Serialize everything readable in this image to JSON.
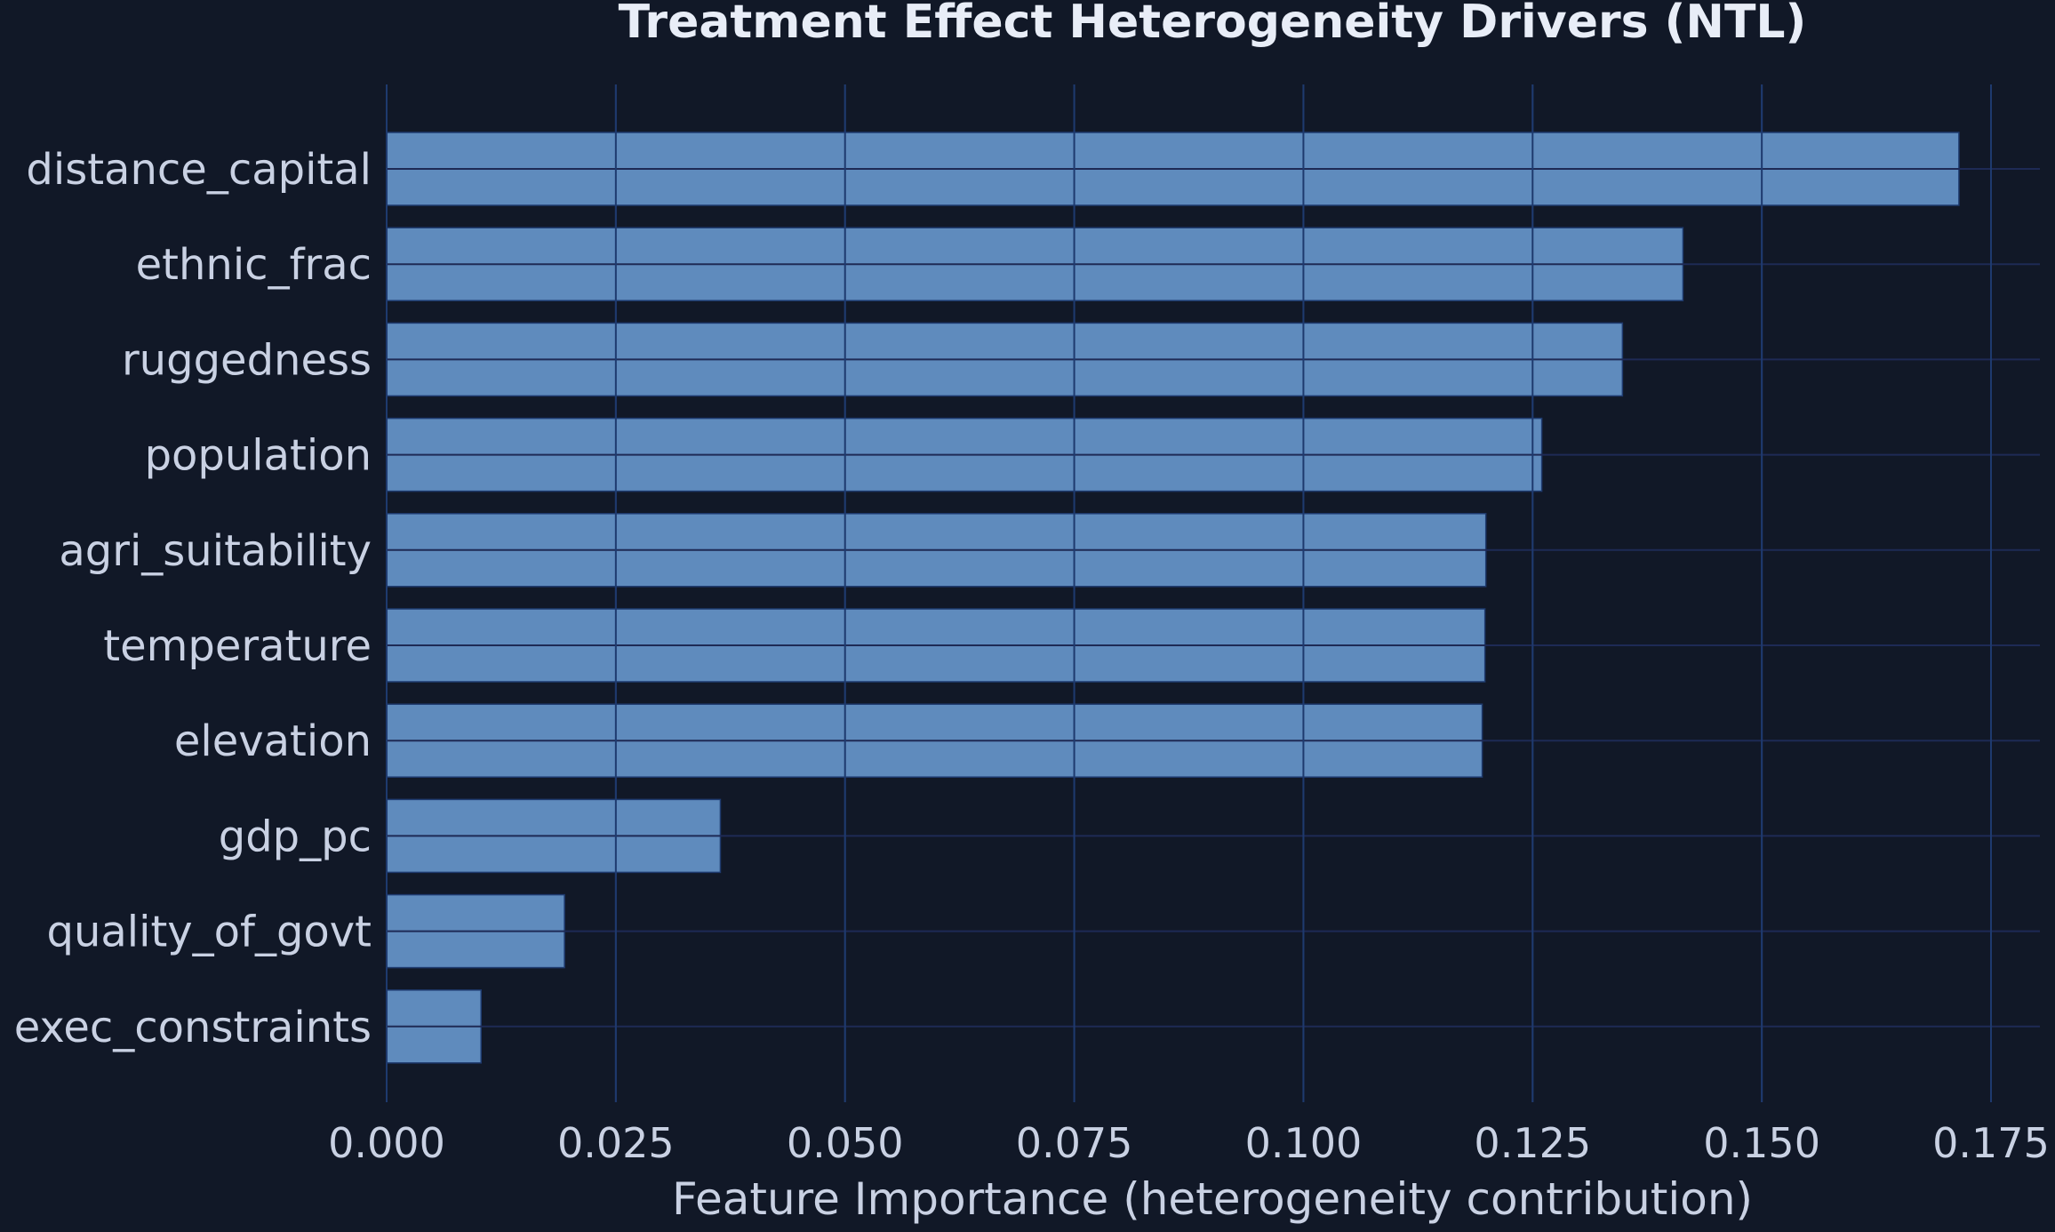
{
  "chart_data": {
    "type": "bar",
    "orientation": "horizontal",
    "title": "Treatment Effect Heterogeneity Drivers (NTL)",
    "xlabel": "Feature Importance (heterogeneity contribution)",
    "ylabel": "",
    "categories": [
      "distance_capital",
      "ethnic_frac",
      "ruggedness",
      "population",
      "agri_suitability",
      "temperature",
      "elevation",
      "gdp_pc",
      "quality_of_govt",
      "exec_constraints"
    ],
    "values": [
      0.1715,
      0.1414,
      0.1348,
      0.126,
      0.1199,
      0.1198,
      0.1195,
      0.0364,
      0.0194,
      0.0103
    ],
    "xlim": [
      0,
      0.18
    ],
    "xticks": [
      "0.000",
      "0.025",
      "0.050",
      "0.075",
      "0.100",
      "0.125",
      "0.150",
      "0.175"
    ],
    "grid": true,
    "legend": "none"
  },
  "colors": {
    "background": "#111827",
    "bar_fill": "#5f8bbd",
    "bar_edge": "#1e3a6e",
    "grid": "#1e2a55",
    "text": "#c9d1e3",
    "title": "#e8edf7"
  }
}
